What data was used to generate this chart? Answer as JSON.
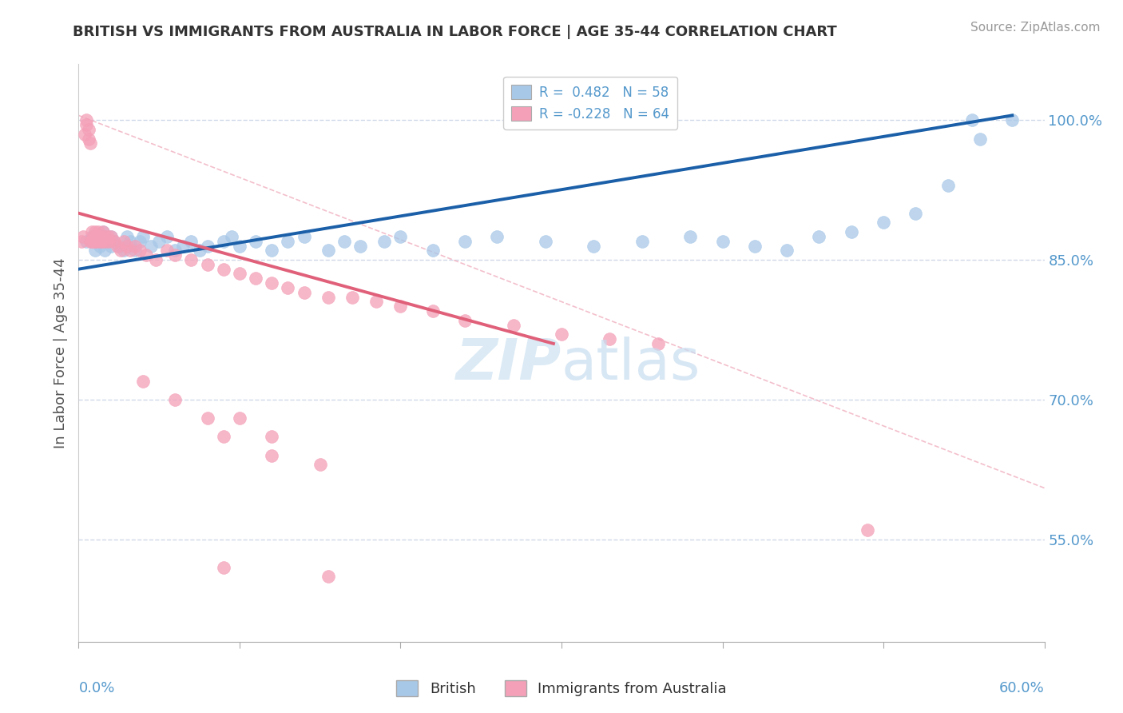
{
  "title": "BRITISH VS IMMIGRANTS FROM AUSTRALIA IN LABOR FORCE | AGE 35-44 CORRELATION CHART",
  "source": "Source: ZipAtlas.com",
  "ylabel": "In Labor Force | Age 35-44",
  "xlim": [
    0.0,
    0.6
  ],
  "ylim": [
    0.44,
    1.06
  ],
  "right_yticks": [
    0.55,
    0.7,
    0.85,
    1.0
  ],
  "right_yticklabels": [
    "55.0%",
    "70.0%",
    "85.0%",
    "100.0%"
  ],
  "legend_blue": "R =  0.482   N = 58",
  "legend_pink": "R = -0.228   N = 64",
  "blue_color": "#a8c8e8",
  "pink_color": "#f4a0b8",
  "trendline_blue_color": "#1a5fa8",
  "trendline_pink_color": "#e0607a",
  "ref_line_color": "#f4a0b8",
  "grid_color": "#d0d8e8",
  "text_color": "#5599cc",
  "title_color": "#333333",
  "background_color": "#ffffff",
  "blue_scatter_x": [
    0.005,
    0.008,
    0.01,
    0.01,
    0.012,
    0.013,
    0.015,
    0.015,
    0.016,
    0.018,
    0.02,
    0.02,
    0.022,
    0.025,
    0.028,
    0.03,
    0.032,
    0.035,
    0.038,
    0.04,
    0.045,
    0.05,
    0.055,
    0.06,
    0.065,
    0.07,
    0.075,
    0.08,
    0.09,
    0.095,
    0.1,
    0.11,
    0.12,
    0.13,
    0.14,
    0.155,
    0.165,
    0.175,
    0.19,
    0.2,
    0.22,
    0.24,
    0.26,
    0.29,
    0.32,
    0.35,
    0.38,
    0.4,
    0.42,
    0.44,
    0.46,
    0.48,
    0.5,
    0.52,
    0.54,
    0.555,
    0.56,
    0.58
  ],
  "blue_scatter_y": [
    0.87,
    0.875,
    0.86,
    0.875,
    0.87,
    0.865,
    0.88,
    0.875,
    0.86,
    0.87,
    0.865,
    0.875,
    0.87,
    0.865,
    0.86,
    0.875,
    0.87,
    0.86,
    0.87,
    0.875,
    0.865,
    0.87,
    0.875,
    0.86,
    0.865,
    0.87,
    0.86,
    0.865,
    0.87,
    0.875,
    0.865,
    0.87,
    0.86,
    0.87,
    0.875,
    0.86,
    0.87,
    0.865,
    0.87,
    0.875,
    0.86,
    0.87,
    0.875,
    0.87,
    0.865,
    0.87,
    0.875,
    0.87,
    0.865,
    0.86,
    0.875,
    0.88,
    0.89,
    0.9,
    0.93,
    1.0,
    0.98,
    1.0
  ],
  "pink_scatter_x": [
    0.002,
    0.003,
    0.004,
    0.005,
    0.005,
    0.006,
    0.006,
    0.007,
    0.007,
    0.008,
    0.008,
    0.009,
    0.009,
    0.01,
    0.01,
    0.01,
    0.011,
    0.012,
    0.012,
    0.013,
    0.013,
    0.014,
    0.015,
    0.015,
    0.016,
    0.017,
    0.018,
    0.019,
    0.02,
    0.022,
    0.024,
    0.026,
    0.028,
    0.03,
    0.032,
    0.035,
    0.038,
    0.042,
    0.048,
    0.055,
    0.06,
    0.07,
    0.08,
    0.09,
    0.1,
    0.11,
    0.12,
    0.13,
    0.14,
    0.155,
    0.17,
    0.185,
    0.2,
    0.22,
    0.24,
    0.27,
    0.3,
    0.33,
    0.36,
    0.06,
    0.1,
    0.12,
    0.15,
    0.49
  ],
  "pink_scatter_y": [
    0.87,
    0.875,
    0.985,
    0.995,
    1.0,
    0.98,
    0.99,
    0.87,
    0.975,
    0.87,
    0.88,
    0.87,
    0.875,
    0.87,
    0.88,
    0.875,
    0.87,
    0.875,
    0.88,
    0.87,
    0.875,
    0.87,
    0.88,
    0.87,
    0.875,
    0.87,
    0.875,
    0.87,
    0.875,
    0.87,
    0.865,
    0.86,
    0.87,
    0.865,
    0.86,
    0.865,
    0.86,
    0.855,
    0.85,
    0.86,
    0.855,
    0.85,
    0.845,
    0.84,
    0.835,
    0.83,
    0.825,
    0.82,
    0.815,
    0.81,
    0.81,
    0.805,
    0.8,
    0.795,
    0.785,
    0.78,
    0.77,
    0.765,
    0.76,
    0.7,
    0.68,
    0.66,
    0.63,
    0.56
  ],
  "pink_extra_x": [
    0.04,
    0.08,
    0.09,
    0.12,
    0.155,
    0.09
  ],
  "pink_extra_y": [
    0.72,
    0.68,
    0.66,
    0.64,
    0.51,
    0.52
  ],
  "blue_trend_x": [
    0.0,
    0.58
  ],
  "blue_trend_y": [
    0.84,
    1.005
  ],
  "pink_trend_x": [
    0.0,
    0.295
  ],
  "pink_trend_y": [
    0.9,
    0.76
  ],
  "ref_line_x": [
    0.0,
    0.6
  ],
  "ref_line_y": [
    1.005,
    0.605
  ]
}
